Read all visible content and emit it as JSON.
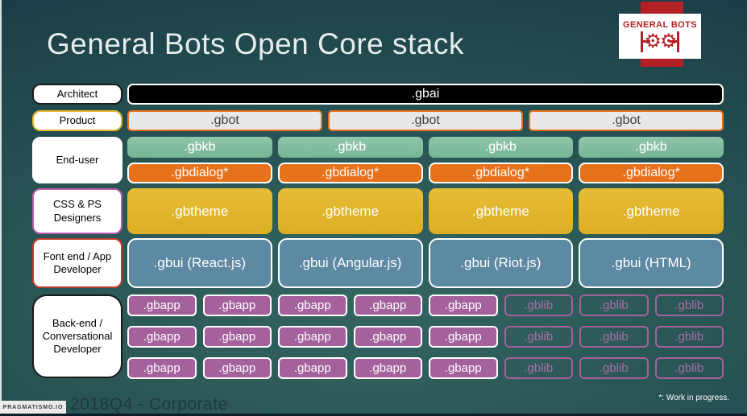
{
  "title": "General Bots Open Core stack",
  "logo": {
    "name": "GENERAL BOTS",
    "gear_icon": "⚙⚙"
  },
  "roles": [
    {
      "label": "Architect"
    },
    {
      "label": "Product"
    },
    {
      "label": "End-user"
    },
    {
      "label": "CSS & PS Designers"
    },
    {
      "label": "Font end / App Developer"
    },
    {
      "label": "Back-end / Conversational Developer"
    }
  ],
  "stack": {
    "gbai": ".gbai",
    "gbot": [
      ".gbot",
      ".gbot",
      ".gbot"
    ],
    "gbkb": [
      ".gbkb",
      ".gbkb",
      ".gbkb",
      ".gbkb"
    ],
    "gbdialog": [
      ".gbdialog*",
      ".gbdialog*",
      ".gbdialog*",
      ".gbdialog*"
    ],
    "gbtheme": [
      ".gbtheme",
      ".gbtheme",
      ".gbtheme",
      ".gbtheme"
    ],
    "gbui": [
      ".gbui (React.js)",
      ".gbui (Angular.js)",
      ".gbui (Riot.js)",
      ".gbui (HTML)"
    ],
    "backend_rows": [
      {
        "apps": [
          ".gbapp",
          ".gbapp",
          ".gbapp",
          ".gbapp",
          ".gbapp"
        ],
        "libs": [
          ".gblib",
          ".gblib",
          ".gblib"
        ]
      },
      {
        "apps": [
          ".gbapp",
          ".gbapp",
          ".gbapp",
          ".gbapp",
          ".gbapp"
        ],
        "libs": [
          ".gblib",
          ".gblib",
          ".gblib"
        ]
      },
      {
        "apps": [
          ".gbapp",
          ".gbapp",
          ".gbapp",
          ".gbapp",
          ".gbapp"
        ],
        "libs": [
          ".gblib",
          ".gblib",
          ".gblib"
        ]
      }
    ]
  },
  "footer": {
    "brand": "PRAGMATISMO.IO",
    "caption": "2018Q4 - Corporate",
    "note": "*: Work in progress."
  },
  "colors": {
    "background_dark": "#16323e",
    "background_light": "#336561",
    "logo_red": "#b32025",
    "gbai_fill": "#000000",
    "gbot_fill": "#e8e8e8",
    "gbot_border": "#e8711b",
    "gbkb_fill": "#80bc9f",
    "gbdialog_fill": "#e8711b",
    "gbtheme_fill": "#e2b42c",
    "gbui_fill": "#5d89a2",
    "gbapp_fill": "#a4619d",
    "gblib_border": "#a4619d"
  }
}
